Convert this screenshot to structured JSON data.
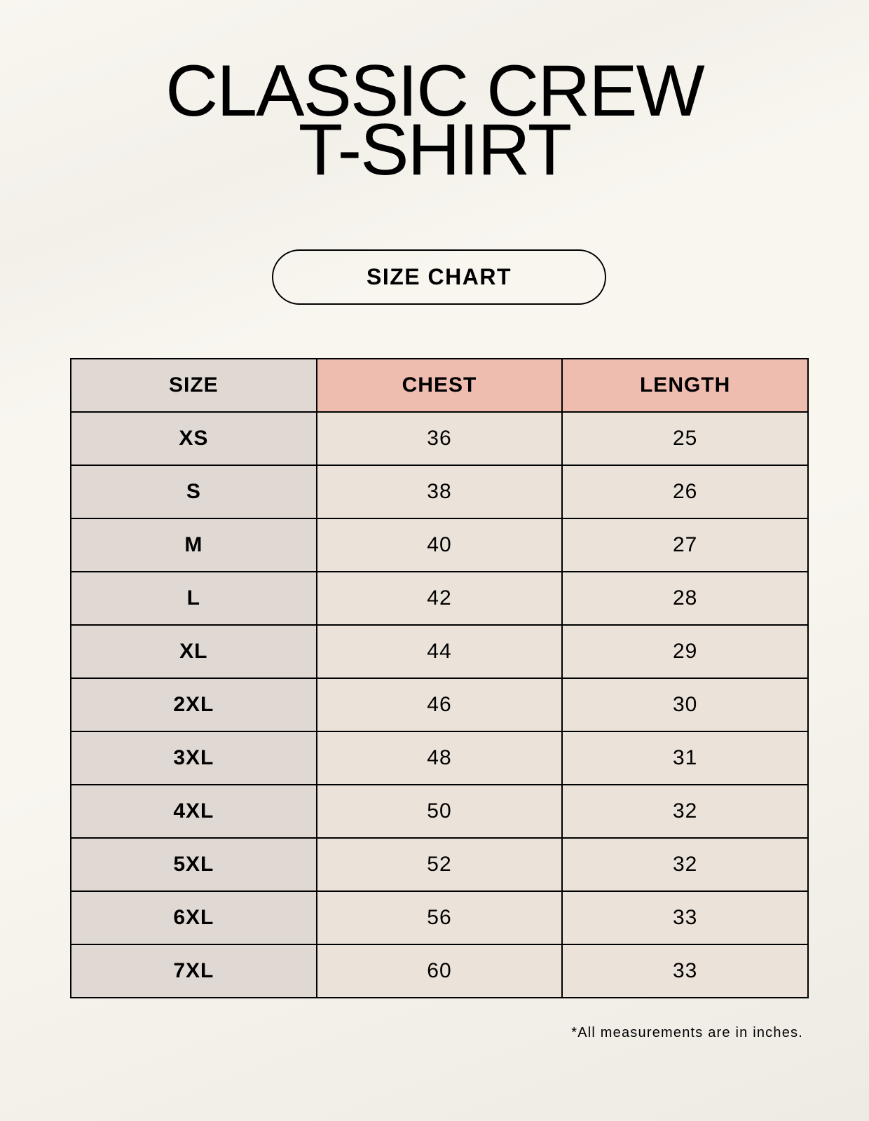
{
  "title": {
    "line1": "CLASSIC CREW",
    "line2": "T-SHIRT"
  },
  "badge": "SIZE CHART",
  "table": {
    "headers": [
      "SIZE",
      "CHEST",
      "LENGTH"
    ],
    "rows": [
      [
        "XS",
        "36",
        "25"
      ],
      [
        "S",
        "38",
        "26"
      ],
      [
        "M",
        "40",
        "27"
      ],
      [
        "L",
        "42",
        "28"
      ],
      [
        "XL",
        "44",
        "29"
      ],
      [
        "2XL",
        "46",
        "30"
      ],
      [
        "3XL",
        "48",
        "31"
      ],
      [
        "4XL",
        "50",
        "32"
      ],
      [
        "5XL",
        "52",
        "32"
      ],
      [
        "6XL",
        "56",
        "33"
      ],
      [
        "7XL",
        "60",
        "33"
      ]
    ]
  },
  "footnote": "*All measurements are in inches.",
  "colors": {
    "background": "#f8f5ef",
    "size_column": "#e0d8d2",
    "header_accent": "#eebdb0",
    "value_cells": "#ebe3d9"
  }
}
